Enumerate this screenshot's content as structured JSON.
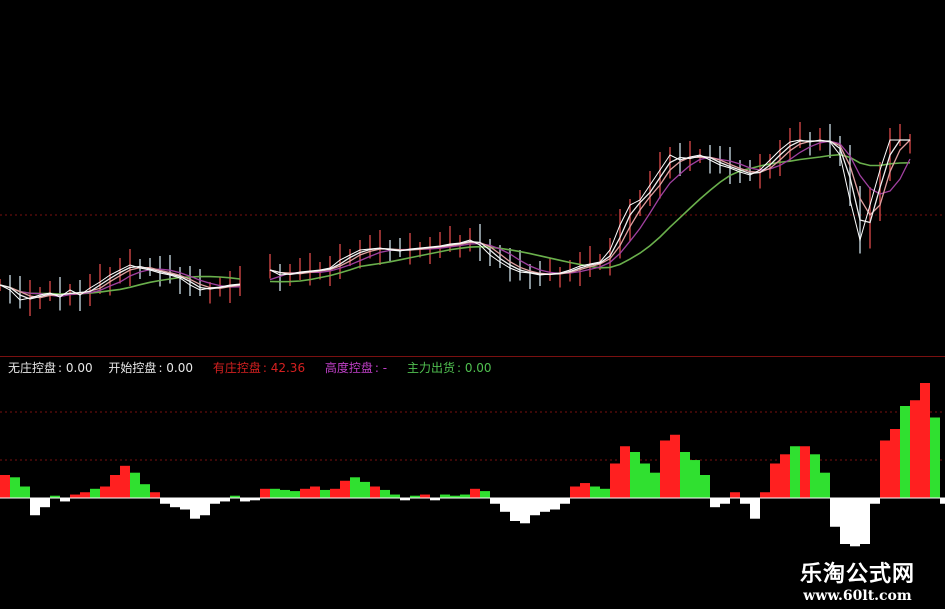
{
  "legend": [
    {
      "label": "无庄控盘",
      "value": "0.00",
      "color": "#e8e8e8"
    },
    {
      "label": "开始控盘",
      "value": "0.00",
      "color": "#e8e8e8"
    },
    {
      "label": "有庄控盘",
      "value": "42.36",
      "color": "#d42020"
    },
    {
      "label": "高度控盘",
      "value": "-",
      "color": "#c040c8"
    },
    {
      "label": "主力出货",
      "value": "0.00",
      "color": "#50c050"
    }
  ],
  "watermark": {
    "name": "乐淘公式网",
    "url": "www.60lt.com"
  },
  "colors": {
    "background": "#000000",
    "up": "#ff2020",
    "down": "#30e030",
    "negative": "#ffffff",
    "ma_long": "#6ab04c",
    "ma_mid": "#a040a0",
    "ma_short": "#f0f0f0",
    "grid": "#7a1010"
  },
  "chart_data": [
    {
      "type": "line",
      "panel": "price",
      "grid": true,
      "x_step": 1,
      "series": [
        {
          "role": "close",
          "values": [
            7.5,
            7.0,
            6.0,
            6.2,
            6.5,
            6.7,
            6.3,
            7.0,
            6.5,
            7.2,
            7.8,
            8.5,
            9.0,
            9.5,
            9.2,
            9.0,
            8.7,
            8.5,
            8.2,
            7.5,
            7.0,
            7.2,
            7.3,
            7.5,
            7.6,
            null,
            null,
            9.0,
            8.5,
            8.6,
            8.8,
            8.9,
            9.0,
            9.2,
            10.0,
            10.5,
            11.0,
            11.1,
            11.2,
            11.0,
            10.9,
            11.1,
            11.2,
            11.3,
            11.4,
            11.6,
            11.7,
            12.0,
            11.5,
            10.5,
            9.8,
            9.2,
            8.8,
            8.7,
            8.5,
            8.6,
            8.7,
            9.0,
            9.4,
            9.6,
            9.8,
            11.0,
            13.5,
            15.5,
            16.0,
            17.5,
            19.0,
            20.5,
            20.0,
            20.3,
            20.5,
            20.0,
            19.5,
            19.2,
            18.8,
            18.5,
            19.0,
            20.0,
            21.0,
            21.8,
            22.0,
            21.8,
            22.0,
            21.8,
            20.5,
            16.0,
            12.0,
            15.5,
            19.0,
            22.0,
            22.0,
            22.0
          ]
        }
      ]
    },
    {
      "type": "bar",
      "panel": "indicator",
      "grid": true,
      "values": [
        20,
        18,
        10,
        -15,
        -8,
        2,
        -3,
        3,
        5,
        8,
        10,
        20,
        28,
        22,
        12,
        5,
        -5,
        -8,
        -10,
        -18,
        -15,
        -5,
        -3,
        2,
        -3,
        -2,
        8,
        8,
        7,
        6,
        8,
        10,
        7,
        8,
        15,
        18,
        14,
        10,
        7,
        3,
        -2,
        2,
        3,
        -2,
        3,
        2,
        3,
        8,
        6,
        -5,
        -12,
        -20,
        -22,
        -15,
        -12,
        -10,
        -5,
        10,
        13,
        10,
        8,
        30,
        45,
        40,
        30,
        22,
        50,
        55,
        40,
        33,
        20,
        -8,
        -5,
        5,
        -5,
        -18,
        5,
        30,
        38,
        45,
        45,
        38,
        22,
        -25,
        -40,
        -42,
        -40,
        -5,
        50,
        60,
        80,
        85,
        100,
        70,
        -5
      ],
      "colors": [
        "up",
        "down",
        "down",
        "neg",
        "neg",
        "down",
        "neg",
        "up",
        "up",
        "down",
        "up",
        "up",
        "up",
        "down",
        "down",
        "up",
        "neg",
        "neg",
        "neg",
        "neg",
        "neg",
        "neg",
        "neg",
        "down",
        "neg",
        "neg",
        "up",
        "down",
        "down",
        "down",
        "up",
        "up",
        "down",
        "up",
        "up",
        "down",
        "down",
        "up",
        "down",
        "down",
        "neg",
        "down",
        "up",
        "neg",
        "down",
        "down",
        "down",
        "up",
        "down",
        "neg",
        "neg",
        "neg",
        "neg",
        "neg",
        "neg",
        "neg",
        "neg",
        "up",
        "up",
        "down",
        "down",
        "up",
        "up",
        "down",
        "down",
        "down",
        "up",
        "up",
        "down",
        "down",
        "down",
        "neg",
        "neg",
        "up",
        "neg",
        "neg",
        "up",
        "up",
        "up",
        "down",
        "up",
        "down",
        "down",
        "neg",
        "neg",
        "neg",
        "neg",
        "neg",
        "up",
        "up",
        "down",
        "up",
        "up",
        "down",
        "neg"
      ]
    }
  ]
}
